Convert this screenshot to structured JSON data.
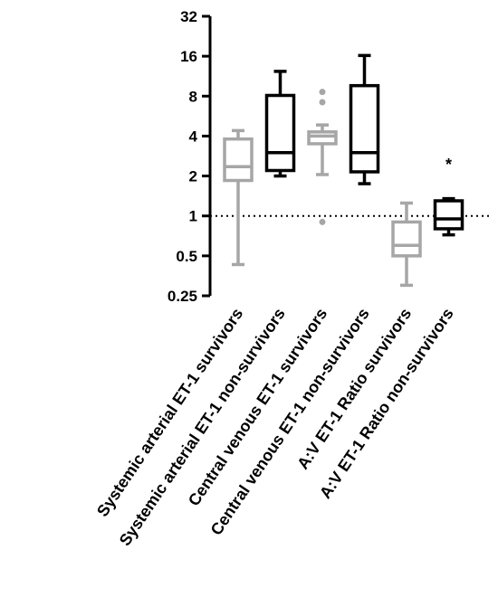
{
  "chart_data": {
    "type": "boxplot",
    "title": "",
    "xlabel": "",
    "ylabel": "",
    "y_scale": "log2",
    "ylim": [
      0.25,
      32
    ],
    "y_ticks": [
      0.25,
      0.5,
      1,
      2,
      4,
      8,
      16,
      32
    ],
    "y_tick_labels": [
      "0.25",
      "0.5",
      "1",
      "2",
      "4",
      "8",
      "16",
      "32"
    ],
    "reference_line": 1,
    "categories": [
      "Systemic arterial ET-1 survivors",
      "Systemic arterial ET-1 non-survivors",
      "Central venous ET-1 survivors",
      "Central venous ET-1 non-survivors",
      "A:V ET-1 Ratio survivors",
      "A:V ET-1 Ratio non-survivors"
    ],
    "boxes": [
      {
        "min": 0.43,
        "q1": 1.85,
        "median": 2.35,
        "q3": 3.8,
        "max": 4.4,
        "outliers": [],
        "color": "#a6a6a6"
      },
      {
        "min": 2.0,
        "q1": 2.2,
        "median": 3.0,
        "q3": 8.1,
        "max": 12.3,
        "outliers": [],
        "color": "#000000"
      },
      {
        "min": 2.05,
        "q1": 3.5,
        "median": 4.0,
        "q3": 4.3,
        "max": 4.85,
        "outliers": [
          0.9,
          7.2,
          8.6
        ],
        "color": "#a6a6a6"
      },
      {
        "min": 1.75,
        "q1": 2.15,
        "median": 3.0,
        "q3": 9.6,
        "max": 16.2,
        "outliers": [],
        "color": "#000000"
      },
      {
        "min": 0.3,
        "q1": 0.5,
        "median": 0.6,
        "q3": 0.9,
        "max": 1.25,
        "outliers": [],
        "color": "#a6a6a6"
      },
      {
        "min": 0.72,
        "q1": 0.8,
        "median": 0.95,
        "q3": 1.3,
        "max": 1.35,
        "outliers": [],
        "color": "#000000"
      }
    ],
    "annotations": [
      {
        "text": "*",
        "category_index": 5,
        "y": 2.6
      }
    ],
    "grid": false,
    "legend": "none"
  }
}
